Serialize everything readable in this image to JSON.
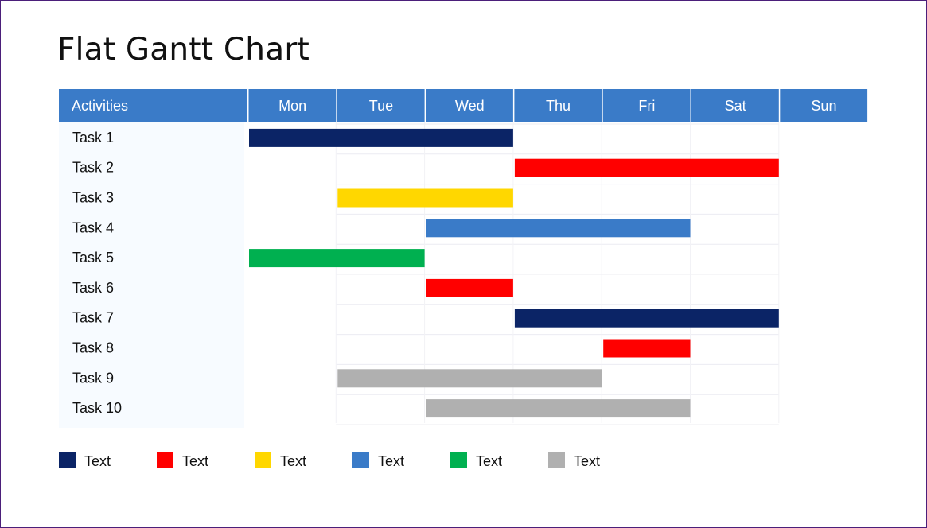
{
  "chart_data": {
    "type": "gantt",
    "title": "Flat Gantt Chart",
    "header_label": "Activities",
    "categories": [
      "Mon",
      "Tue",
      "Wed",
      "Thu",
      "Fri",
      "Sat",
      "Sun"
    ],
    "tasks": [
      {
        "name": "Task 1",
        "start": "Mon",
        "end": "Wed",
        "color": "#0b2466"
      },
      {
        "name": "Task 2",
        "start": "Thu",
        "end": "Sat",
        "color": "#ff0000"
      },
      {
        "name": "Task 3",
        "start": "Tue",
        "end": "Wed",
        "color": "#ffd700"
      },
      {
        "name": "Task 4",
        "start": "Wed",
        "end": "Fri",
        "color": "#3a7bc8"
      },
      {
        "name": "Task 5",
        "start": "Mon",
        "end": "Tue",
        "color": "#00b050"
      },
      {
        "name": "Task 6",
        "start": "Wed",
        "end": "Wed",
        "color": "#ff0000"
      },
      {
        "name": "Task 7",
        "start": "Thu",
        "end": "Sat",
        "color": "#0b2466"
      },
      {
        "name": "Task 8",
        "start": "Fri",
        "end": "Fri",
        "color": "#ff0000"
      },
      {
        "name": "Task 9",
        "start": "Tue",
        "end": "Thu",
        "color": "#b0b0b0"
      },
      {
        "name": "Task 10",
        "start": "Wed",
        "end": "Fri",
        "color": "#b0b0b0"
      }
    ],
    "legend": [
      {
        "label": "Text",
        "color": "#0b2466"
      },
      {
        "label": "Text",
        "color": "#ff0000"
      },
      {
        "label": "Text",
        "color": "#ffd700"
      },
      {
        "label": "Text",
        "color": "#3a7bc8"
      },
      {
        "label": "Text",
        "color": "#00b050"
      },
      {
        "label": "Text",
        "color": "#b0b0b0"
      }
    ],
    "header_color": "#3a7bc8",
    "legend_position": "bottom"
  }
}
